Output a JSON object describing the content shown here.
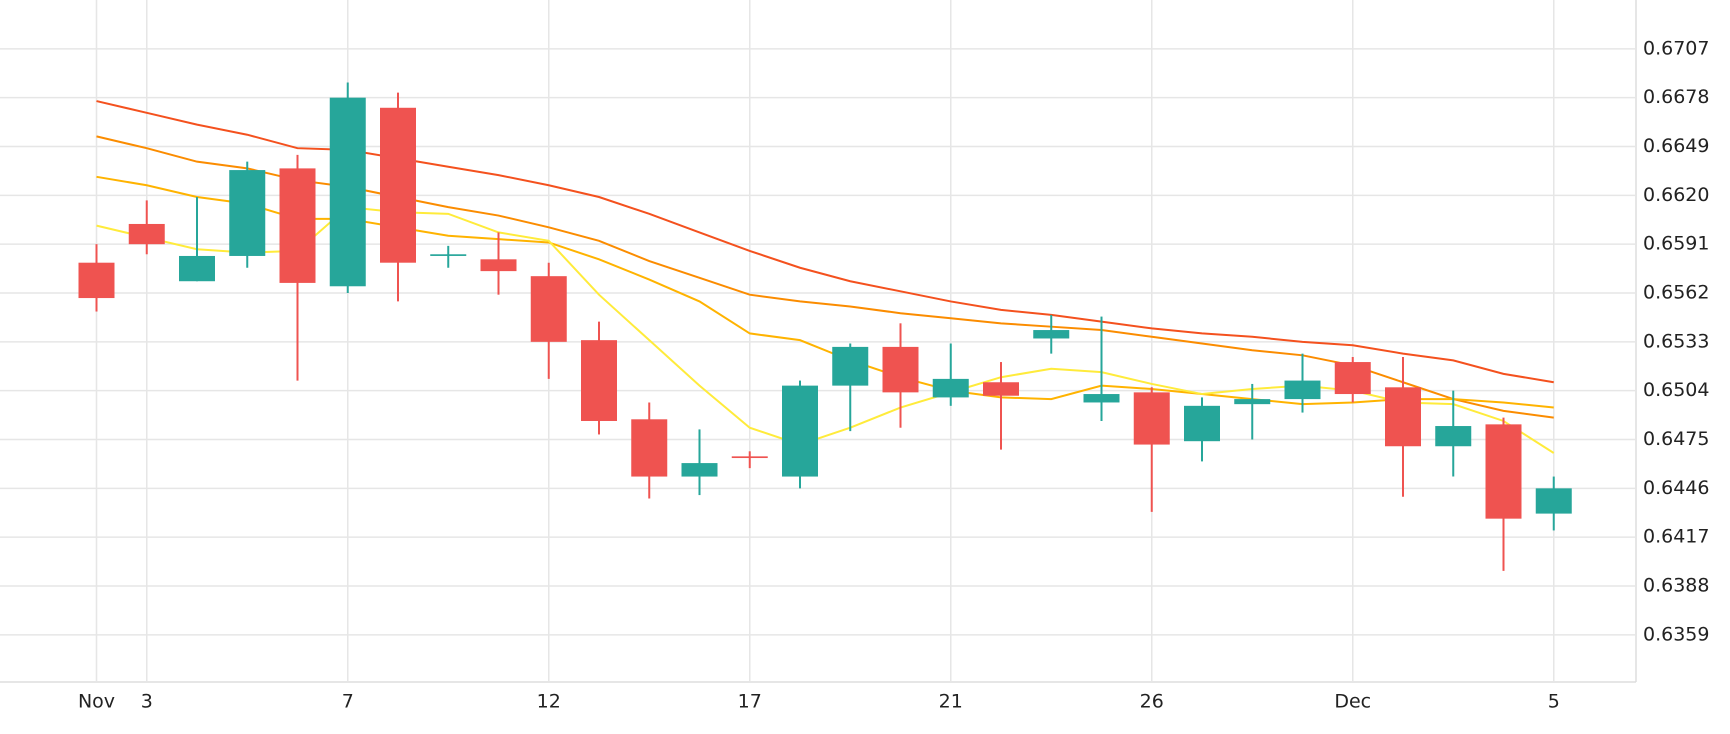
{
  "chart_data": {
    "type": "candlestick",
    "categories": [
      "Nov",
      "3",
      null,
      null,
      null,
      "7",
      null,
      null,
      null,
      "12",
      null,
      null,
      null,
      "17",
      null,
      null,
      null,
      "21",
      null,
      null,
      null,
      "26",
      null,
      null,
      null,
      "Dec",
      null,
      null,
      null,
      "5"
    ],
    "open": [
      0.658,
      0.6603,
      0.6569,
      0.6584,
      0.6636,
      0.6566,
      0.6672,
      0.6584,
      0.6582,
      0.6572,
      0.6534,
      0.6487,
      0.6453,
      0.6465,
      0.6453,
      0.6507,
      0.653,
      0.65,
      0.6509,
      0.6535,
      0.6497,
      0.6503,
      0.6474,
      0.6496,
      0.6499,
      0.6521,
      0.6506,
      0.6471,
      0.6484,
      0.6431
    ],
    "high": [
      0.6591,
      0.6617,
      0.6619,
      0.664,
      0.6644,
      0.6687,
      0.6681,
      0.659,
      0.6598,
      0.658,
      0.6545,
      0.6497,
      0.6481,
      0.6468,
      0.651,
      0.6532,
      0.6544,
      0.6532,
      0.6521,
      0.6549,
      0.6548,
      0.6506,
      0.65,
      0.6508,
      0.6526,
      0.6524,
      0.6524,
      0.6504,
      0.6488,
      0.6453
    ],
    "low": [
      0.6551,
      0.6585,
      0.6569,
      0.6577,
      0.651,
      0.6562,
      0.6557,
      0.6577,
      0.6561,
      0.6511,
      0.6478,
      0.644,
      0.6442,
      0.6458,
      0.6446,
      0.648,
      0.6482,
      0.6495,
      0.6469,
      0.6526,
      0.6486,
      0.6432,
      0.6462,
      0.6475,
      0.6491,
      0.6497,
      0.6441,
      0.6453,
      0.6397,
      0.6421
    ],
    "close": [
      0.6559,
      0.6591,
      0.6584,
      0.6635,
      0.6568,
      0.6678,
      0.658,
      0.6585,
      0.6575,
      0.6533,
      0.6486,
      0.6453,
      0.6461,
      0.6464,
      0.6507,
      0.653,
      0.6503,
      0.6511,
      0.6501,
      0.654,
      0.6502,
      0.6472,
      0.6495,
      0.6499,
      0.651,
      0.6502,
      0.6471,
      0.6483,
      0.6428,
      0.6446
    ],
    "up_color": "#26a69a",
    "down_color": "#ef5350",
    "lines": [
      {
        "color": "#f4511e",
        "values": [
          0.6676,
          0.6669,
          0.6662,
          0.6656,
          0.6648,
          0.6647,
          0.6642,
          0.6637,
          0.6632,
          0.6626,
          0.6619,
          0.6609,
          0.6598,
          0.6587,
          0.6577,
          0.6569,
          0.6563,
          0.6557,
          0.6552,
          0.6549,
          0.6545,
          0.6541,
          0.6538,
          0.6536,
          0.6533,
          0.6531,
          0.6526,
          0.6522,
          0.6514,
          0.6509
        ]
      },
      {
        "color": "#fb8c00",
        "values": [
          0.6655,
          0.6648,
          0.664,
          0.6636,
          0.6629,
          0.6625,
          0.6619,
          0.6613,
          0.6608,
          0.6601,
          0.6593,
          0.6581,
          0.6571,
          0.6561,
          0.6557,
          0.6554,
          0.655,
          0.6547,
          0.6544,
          0.6542,
          0.654,
          0.6536,
          0.6532,
          0.6528,
          0.6525,
          0.6519,
          0.6509,
          0.6499,
          0.6492,
          0.6488
        ]
      },
      {
        "color": "#ffb300",
        "values": [
          0.6631,
          0.6626,
          0.6619,
          0.6615,
          0.6606,
          0.6606,
          0.6601,
          0.6596,
          0.6594,
          0.6592,
          0.6582,
          0.657,
          0.6557,
          0.6538,
          0.6534,
          0.6522,
          0.6512,
          0.6504,
          0.65,
          0.6499,
          0.6507,
          0.6505,
          0.6502,
          0.6499,
          0.6496,
          0.6497,
          0.6499,
          0.6499,
          0.6497,
          0.6494
        ]
      },
      {
        "color": "#ffeb3b",
        "values": [
          0.6602,
          0.6595,
          0.6588,
          0.6586,
          0.6587,
          0.6613,
          0.661,
          0.6609,
          0.6598,
          0.6593,
          0.6561,
          0.6534,
          0.6507,
          0.6482,
          0.6472,
          0.6482,
          0.6494,
          0.6503,
          0.6512,
          0.6517,
          0.6515,
          0.6508,
          0.6502,
          0.6505,
          0.6507,
          0.6504,
          0.6497,
          0.6496,
          0.6486,
          0.6467
        ]
      }
    ],
    "ylim": [
      0.6331,
      0.6736
    ],
    "yticks": [
      0.6359,
      0.6388,
      0.6417,
      0.6446,
      0.6475,
      0.6504,
      0.6533,
      0.6562,
      0.6591,
      {
        "value": 0.662,
        "label": "0.6620"
      },
      0.6649,
      0.6678,
      0.6707
    ],
    "grid": true
  }
}
